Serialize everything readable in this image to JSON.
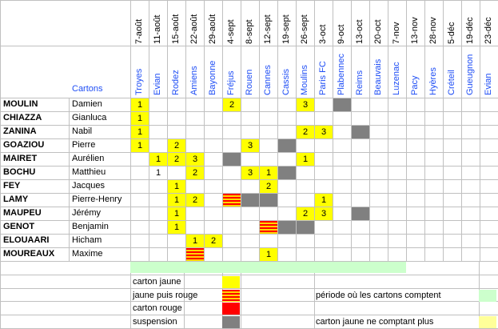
{
  "header": {
    "cartons_label": "Cartons",
    "dates": [
      "7-août",
      "11-août",
      "15-août",
      "22-août",
      "29-août",
      "4-sept",
      "8-sept",
      "12-sept",
      "19-sept",
      "26-sept",
      "3-oct",
      "9-oct",
      "13-oct",
      "20-oct",
      "7-nov",
      "13-nov",
      "28-nov",
      "5-déc",
      "19-déc",
      "23-déc"
    ],
    "opponents": [
      "Troyes",
      "Evian",
      "Rodez",
      "Amiens",
      "Bayonne",
      "Fréjus",
      "Rouen",
      "Cannes",
      "Cassis",
      "Moulins",
      "Paris FC",
      "Plabennec",
      "Reims",
      "Beauvais",
      "Luzenac",
      "Pacy",
      "Hyères",
      "Créteil",
      "Gueugnon",
      "Evian"
    ]
  },
  "players": [
    {
      "last": "MOULIN",
      "first": "Damien"
    },
    {
      "last": "CHIAZZA",
      "first": "Gianluca"
    },
    {
      "last": "ZANINA",
      "first": "Nabil"
    },
    {
      "last": "GOAZIOU",
      "first": "Pierre"
    },
    {
      "last": "MAIRET",
      "first": "Aurélien"
    },
    {
      "last": "BOCHU",
      "first": "Matthieu"
    },
    {
      "last": "FEY",
      "first": "Jacques"
    },
    {
      "last": "LAMY",
      "first": "Pierre-Henry"
    },
    {
      "last": "MAUPEU",
      "first": "Jérémy"
    },
    {
      "last": "GENOT",
      "first": "Benjamin"
    },
    {
      "last": "ELOUAARI",
      "first": "Hicham"
    },
    {
      "last": "MOUREAUX",
      "first": "Maxime"
    }
  ],
  "cells": [
    {
      "r": 0,
      "c": 0,
      "t": "y",
      "v": "1"
    },
    {
      "r": 0,
      "c": 5,
      "t": "y",
      "v": "2"
    },
    {
      "r": 0,
      "c": 9,
      "t": "y",
      "v": "3"
    },
    {
      "r": 0,
      "c": 11,
      "t": "g",
      "v": ""
    },
    {
      "r": 1,
      "c": 0,
      "t": "y",
      "v": "1"
    },
    {
      "r": 2,
      "c": 0,
      "t": "y",
      "v": "1"
    },
    {
      "r": 2,
      "c": 9,
      "t": "y",
      "v": "2"
    },
    {
      "r": 2,
      "c": 10,
      "t": "y",
      "v": "3"
    },
    {
      "r": 2,
      "c": 12,
      "t": "g",
      "v": ""
    },
    {
      "r": 3,
      "c": 0,
      "t": "y",
      "v": "1"
    },
    {
      "r": 3,
      "c": 2,
      "t": "y",
      "v": "2"
    },
    {
      "r": 3,
      "c": 6,
      "t": "y",
      "v": "3"
    },
    {
      "r": 3,
      "c": 8,
      "t": "g",
      "v": ""
    },
    {
      "r": 4,
      "c": 1,
      "t": "y",
      "v": "1"
    },
    {
      "r": 4,
      "c": 2,
      "t": "y",
      "v": "2"
    },
    {
      "r": 4,
      "c": 3,
      "t": "y",
      "v": "3"
    },
    {
      "r": 4,
      "c": 5,
      "t": "g",
      "v": ""
    },
    {
      "r": 4,
      "c": 9,
      "t": "y",
      "v": "1"
    },
    {
      "r": 5,
      "c": 1,
      "t": "n",
      "v": "1"
    },
    {
      "r": 5,
      "c": 3,
      "t": "y",
      "v": "2"
    },
    {
      "r": 5,
      "c": 6,
      "t": "y",
      "v": "3"
    },
    {
      "r": 5,
      "c": 7,
      "t": "y",
      "v": "1"
    },
    {
      "r": 5,
      "c": 8,
      "t": "g",
      "v": ""
    },
    {
      "r": 6,
      "c": 2,
      "t": "y",
      "v": "1"
    },
    {
      "r": 6,
      "c": 7,
      "t": "y",
      "v": "2"
    },
    {
      "r": 7,
      "c": 2,
      "t": "y",
      "v": "1"
    },
    {
      "r": 7,
      "c": 3,
      "t": "y",
      "v": "2"
    },
    {
      "r": 7,
      "c": 5,
      "t": "s",
      "v": ""
    },
    {
      "r": 7,
      "c": 6,
      "t": "g",
      "v": ""
    },
    {
      "r": 7,
      "c": 7,
      "t": "g",
      "v": ""
    },
    {
      "r": 7,
      "c": 10,
      "t": "y",
      "v": "1"
    },
    {
      "r": 8,
      "c": 2,
      "t": "y",
      "v": "1"
    },
    {
      "r": 8,
      "c": 9,
      "t": "y",
      "v": "2"
    },
    {
      "r": 8,
      "c": 10,
      "t": "y",
      "v": "3"
    },
    {
      "r": 8,
      "c": 12,
      "t": "g",
      "v": ""
    },
    {
      "r": 9,
      "c": 2,
      "t": "y",
      "v": "1"
    },
    {
      "r": 9,
      "c": 7,
      "t": "s",
      "v": ""
    },
    {
      "r": 9,
      "c": 8,
      "t": "g",
      "v": ""
    },
    {
      "r": 9,
      "c": 9,
      "t": "g",
      "v": ""
    },
    {
      "r": 10,
      "c": 3,
      "t": "y",
      "v": "1"
    },
    {
      "r": 10,
      "c": 4,
      "t": "y",
      "v": "2"
    },
    {
      "r": 10,
      "c": 3,
      "t": "s2",
      "v": ""
    },
    {
      "r": 11,
      "c": 7,
      "t": "y",
      "v": "1"
    }
  ],
  "legend": {
    "yellow": "carton jaune",
    "yellow_red": "jaune puis rouge",
    "red": "carton rouge",
    "suspension": "suspension",
    "period": "période où les cartons comptent",
    "expired": "carton jaune ne comptant plus"
  },
  "colors": {
    "yellow": "#ffff00",
    "red": "#ff0000",
    "grey": "#808080",
    "period_green": "#ccffcc",
    "expired_yellow": "#ffff99",
    "opponent_blue": "#1f4ef5"
  }
}
